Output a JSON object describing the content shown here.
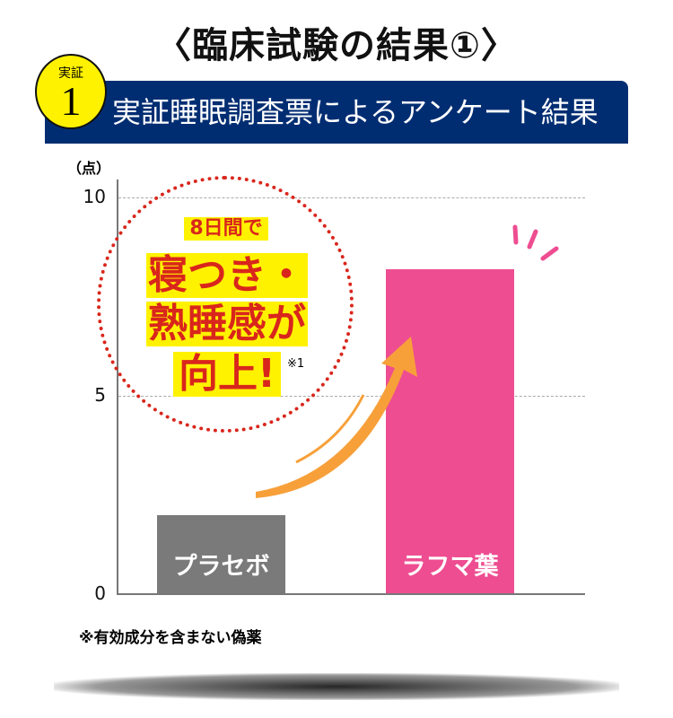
{
  "title": "〈臨床試験の結果①〉",
  "badge": {
    "label": "実証",
    "number": "1"
  },
  "banner": "実証睡眠調査票によるアンケート結果",
  "callout": {
    "line1": "8日間で",
    "line2": "寝つき・",
    "line3": "熟睡感が",
    "line4": "向上!",
    "ref": "※1"
  },
  "note": "※有効成分を含まない偽薬",
  "colors": {
    "placebo": "#7a7a7a",
    "rafuma": "#ee4d91",
    "banner": "#002d72",
    "arrow": "#f7a03a"
  },
  "chart_data": {
    "type": "bar",
    "ylabel": "（点）",
    "ylim": [
      0,
      10
    ],
    "yticks": [
      "0",
      "5",
      "10"
    ],
    "grid": true,
    "categories": [
      "プラセボ",
      "ラフマ葉"
    ],
    "values": [
      2.0,
      8.2
    ]
  }
}
